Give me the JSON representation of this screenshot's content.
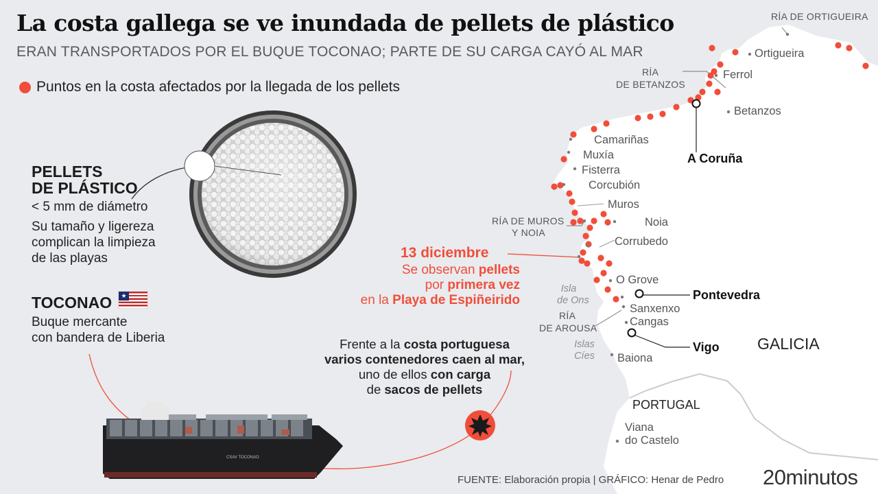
{
  "header": {
    "title": "La costa gallega se ve inundada de pellets de plástico",
    "subtitle": "ERAN TRANSPORTADOS POR EL BUQUE TOCONAO; PARTE DE SU CARGA CAYÓ AL MAR",
    "legend": "Puntos en la costa afectados por la llegada de los pellets"
  },
  "pellets": {
    "title_line1": "PELLETS",
    "title_line2": "DE PLÁSTICO",
    "size": "< 5 mm de diámetro",
    "desc_line1": "Su tamaño y ligereza",
    "desc_line2": "complican la limpieza",
    "desc_line3": "de las playas"
  },
  "ship": {
    "name": "TOCONAO",
    "desc_line1": "Buque mercante",
    "desc_line2": "con bandera de Liberia",
    "hull_text": "CSAV TOCONAO"
  },
  "event": {
    "date": "13 diciembre",
    "line1_a": "Se observan ",
    "line1_b": "pellets",
    "line2_a": "por ",
    "line2_b": "primera vez",
    "line3_a": "en la ",
    "line3_b": "Playa de Espiñeirido"
  },
  "containers_note": {
    "line1_a": "Frente a la ",
    "line1_b": "costa portuguesa",
    "line2": "varios contenedores caen al mar,",
    "line3_a": "uno de ellos ",
    "line3_b": "con carga",
    "line4_a": "de ",
    "line4_b": "sacos de pellets"
  },
  "places": {
    "ria_ortigueira": "RÍA DE ORTIGUEIRA",
    "ortigueira": "Ortigueira",
    "ferrol": "Ferrol",
    "ria_betanzos_1": "RÍA",
    "ria_betanzos_2": "DE BETANZOS",
    "betanzos": "Betanzos",
    "a_coruna": "A Coruña",
    "camarinas": "Camariñas",
    "muxia": "Muxía",
    "fisterra": "Fisterra",
    "corcubion": "Corcubión",
    "muros": "Muros",
    "ria_muros_1": "RÍA DE MUROS",
    "ria_muros_2": "Y NOIA",
    "noia": "Noia",
    "corrubedo": "Corrubedo",
    "o_grove": "O Grove",
    "isla_ons_1": "Isla",
    "isla_ons_2": "de Ons",
    "pontevedra": "Pontevedra",
    "sanxenxo": "Sanxenxo",
    "ria_arousa_1": "RÍA",
    "ria_arousa_2": "DE AROUSA",
    "cangas": "Cangas",
    "vigo": "Vigo",
    "islas_cies_1": "Islas",
    "islas_cies_2": "Cíes",
    "baiona": "Baiona",
    "galicia": "GALICIA",
    "portugal": "PORTUGAL",
    "viana_1": "Viana",
    "viana_2": "do Castelo"
  },
  "footer": {
    "source": "FUENTE: Elaboración propia  |  GRÁFICO: Henar de Pedro",
    "brand": "20minutos"
  },
  "colors": {
    "accent": "#f04e3a",
    "land": "#ffffff",
    "sea": "#e9ebee",
    "border": "#c9ccd1"
  }
}
